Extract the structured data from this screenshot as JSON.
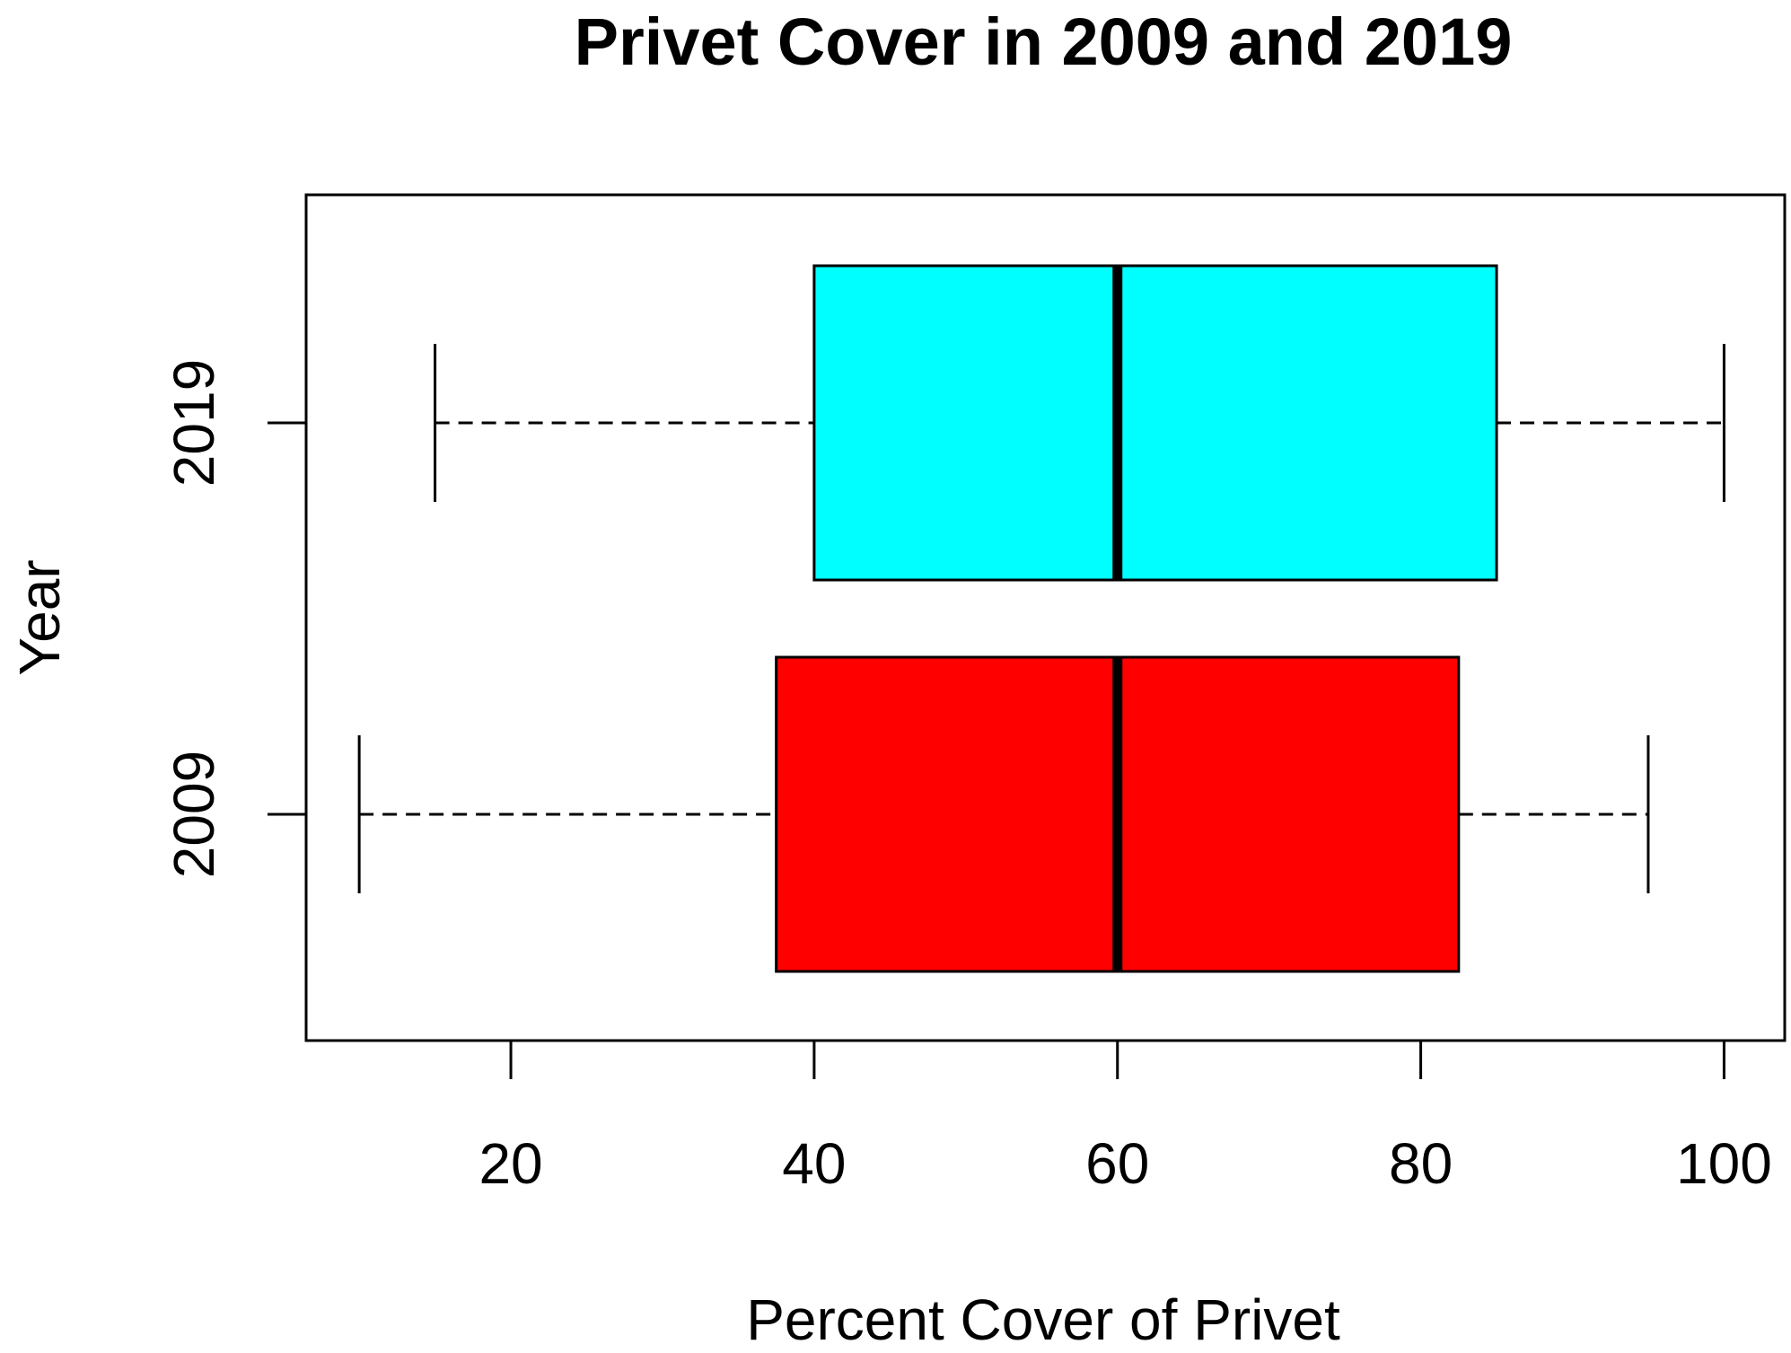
{
  "chart_data": {
    "type": "boxplot",
    "orientation": "horizontal",
    "title": "Privet Cover in 2009 and 2019",
    "xlabel": "Percent Cover of Privet",
    "ylabel": "Year",
    "xlim": [
      6.5,
      104
    ],
    "x_ticks": [
      20,
      40,
      60,
      80,
      100
    ],
    "x_tick_labels": [
      "20",
      "40",
      "60",
      "80",
      "100"
    ],
    "categories": [
      "2009",
      "2019"
    ],
    "grid": false,
    "legend": "none",
    "series": [
      {
        "category": "2009",
        "color": "#ff0000",
        "min": 10,
        "q1": 37.5,
        "median": 60,
        "q3": 82.5,
        "max": 95
      },
      {
        "category": "2019",
        "color": "#00ffff",
        "min": 15,
        "q1": 40,
        "median": 60,
        "q3": 85,
        "max": 100
      }
    ]
  }
}
